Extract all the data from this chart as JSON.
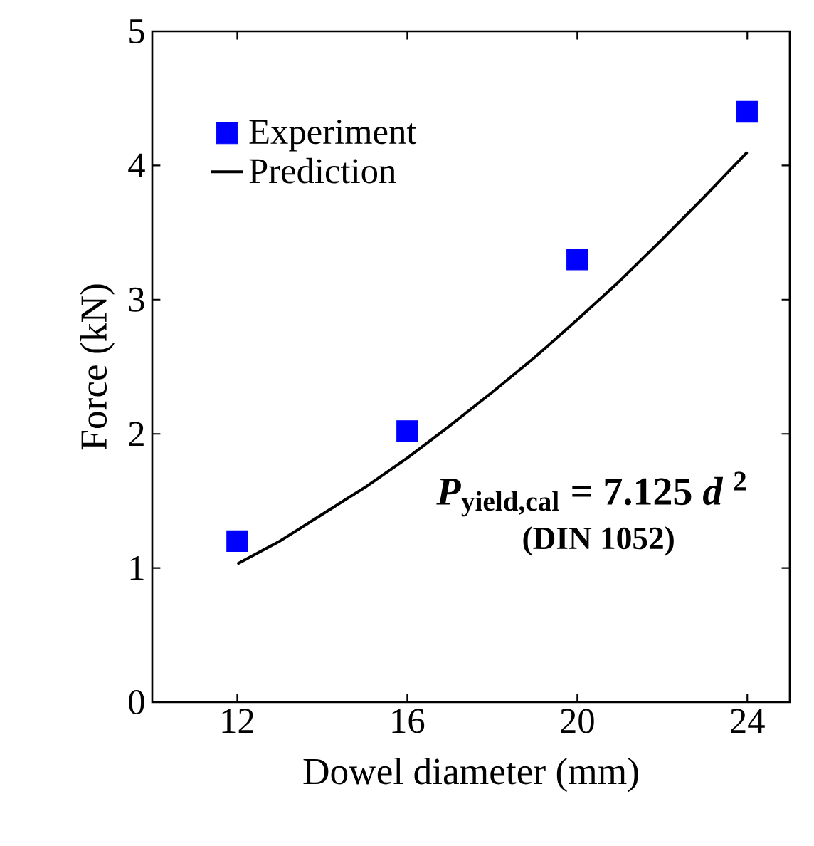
{
  "chart_data": {
    "type": "scatter",
    "xlabel": "Dowel diameter (mm)",
    "ylabel": "Force (kN)",
    "xlim": [
      10,
      25
    ],
    "xticks": [
      12,
      16,
      20,
      24
    ],
    "ylim": [
      0,
      5
    ],
    "yticks": [
      0,
      1,
      2,
      3,
      4,
      5
    ],
    "grid": false,
    "legend": "top left",
    "marker": "square",
    "series": [
      {
        "name": "Experiment",
        "color": "#0000ff",
        "x": [
          12,
          16,
          20,
          24
        ],
        "values": [
          1.2,
          2.02,
          3.3,
          4.4
        ]
      },
      {
        "name": "Prediction",
        "type": "line",
        "color": "#000000",
        "marker": "none",
        "line_style": "solid",
        "x": [
          12,
          13,
          14,
          15,
          16,
          17,
          18,
          19,
          20,
          21,
          22,
          23,
          24
        ],
        "values": [
          1.03,
          1.2,
          1.4,
          1.6,
          1.82,
          2.06,
          2.31,
          2.57,
          2.85,
          3.14,
          3.45,
          3.77,
          4.1
        ]
      }
    ],
    "annotations": [
      "*P*$_{yield,cal}$ = 7.125 *d* $^{2}$",
      "(DIN 1052)"
    ]
  }
}
